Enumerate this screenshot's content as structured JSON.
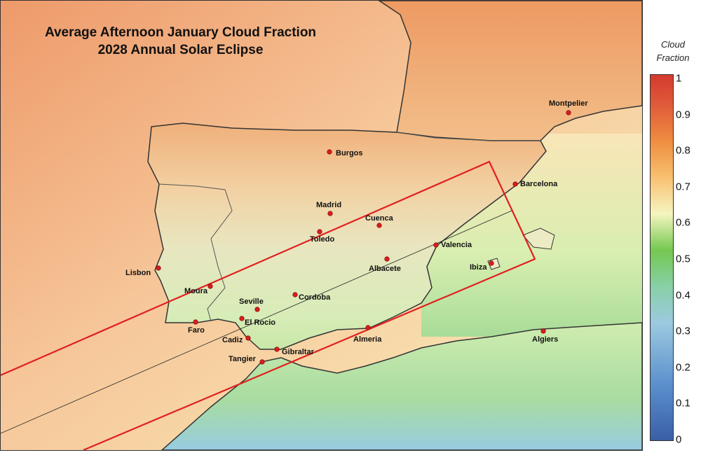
{
  "title": {
    "line1": "Average Afternoon January Cloud Fraction",
    "line2": "2028 Annual Solar Eclipse"
  },
  "legend": {
    "title_line1": "Cloud",
    "title_line2": "Fraction",
    "ticks": [
      "1",
      "0.9",
      "0.8",
      "0.7",
      "0.6",
      "0.5",
      "0.4",
      "0.3",
      "0.2",
      "0.1",
      "0"
    ],
    "range": [
      0,
      1
    ],
    "colors": [
      "#3a5fa6",
      "#9cc9e0",
      "#74c850",
      "#f5f5c0",
      "#ee8c40",
      "#d33a2e"
    ]
  },
  "overlay": {
    "path_color": "#e02020",
    "centerline_color": "#222222"
  },
  "cities": [
    {
      "name": "Burgos"
    },
    {
      "name": "Madrid"
    },
    {
      "name": "Cuenca"
    },
    {
      "name": "Toledo"
    },
    {
      "name": "Valencia"
    },
    {
      "name": "Albacete"
    },
    {
      "name": "Ibiza"
    },
    {
      "name": "Lisbon"
    },
    {
      "name": "Moura"
    },
    {
      "name": "Seville"
    },
    {
      "name": "Cordoba"
    },
    {
      "name": "El Rocio"
    },
    {
      "name": "Faro"
    },
    {
      "name": "Cadiz"
    },
    {
      "name": "Gibraltar"
    },
    {
      "name": "Tangier"
    },
    {
      "name": "Almeria"
    },
    {
      "name": "Barcelona"
    },
    {
      "name": "Montpelier"
    },
    {
      "name": "Algiers"
    }
  ]
}
